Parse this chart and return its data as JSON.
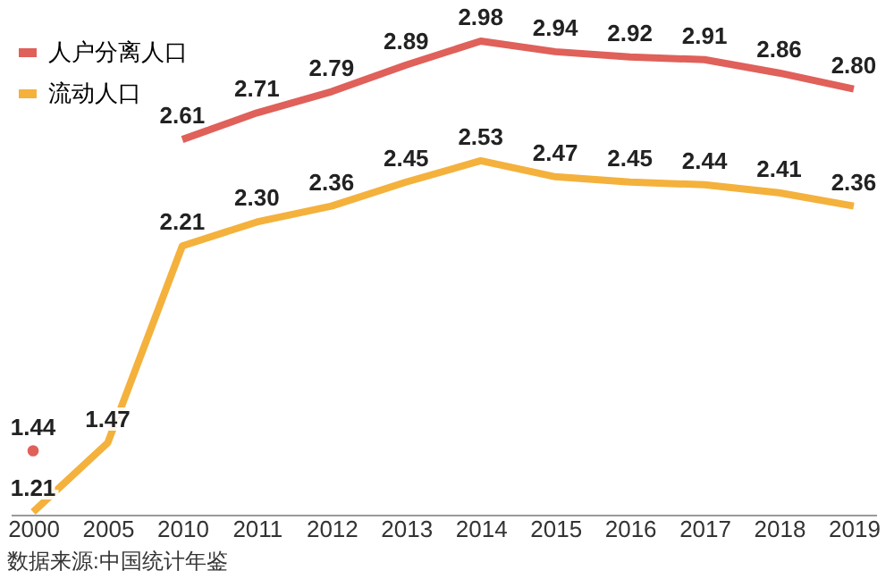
{
  "chart_data": {
    "type": "line",
    "categories": [
      "2000",
      "2005",
      "2010",
      "2011",
      "2012",
      "2013",
      "2014",
      "2015",
      "2016",
      "2017",
      "2018",
      "2019"
    ],
    "series": [
      {
        "name": "人户分离人口",
        "color": "#e0605a",
        "values": [
          1.44,
          null,
          2.61,
          2.71,
          2.79,
          2.89,
          2.98,
          2.94,
          2.92,
          2.91,
          2.86,
          2.8
        ],
        "value_labels": [
          "1.44",
          null,
          "2.61",
          "2.71",
          "2.79",
          "2.89",
          "2.98",
          "2.94",
          "2.92",
          "2.91",
          "2.86",
          "2.80"
        ]
      },
      {
        "name": "流动人口",
        "color": "#f4b13c",
        "values": [
          1.21,
          1.47,
          2.21,
          2.3,
          2.36,
          2.45,
          2.53,
          2.47,
          2.45,
          2.44,
          2.41,
          2.36
        ],
        "value_labels": [
          "1.21",
          "1.47",
          "2.21",
          "2.30",
          "2.36",
          "2.45",
          "2.53",
          "2.47",
          "2.45",
          "2.44",
          "2.41",
          "2.36"
        ]
      }
    ],
    "legend": "top left",
    "grid": false,
    "tick_labels": "x",
    "marker": "none",
    "annotations": [
      "数据来源:中国统计年鉴"
    ]
  }
}
